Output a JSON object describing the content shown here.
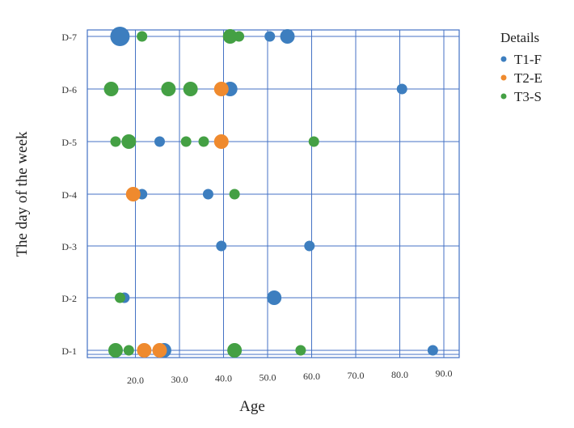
{
  "chart_data": {
    "type": "scatter",
    "title": "",
    "xlabel": "Age",
    "ylabel": "The day of the week",
    "xlim": [
      10,
      90
    ],
    "x_ticks": [
      "20.0",
      "30.0",
      "40.0",
      "50.0",
      "60.0",
      "70.0",
      "80.0",
      "90.0"
    ],
    "categories_y": [
      "D-1",
      "D-2",
      "D-3",
      "D-4",
      "D-5",
      "D-6",
      "D-7"
    ],
    "grid": true,
    "legend": {
      "title": "Details",
      "position": "top-right"
    },
    "series": [
      {
        "name": "T1-F",
        "color": "#3d7ebf",
        "points": [
          {
            "x": 16.5,
            "y": "D-7",
            "size": 3
          },
          {
            "x": 50.5,
            "y": "D-7",
            "size": 1
          },
          {
            "x": 54.5,
            "y": "D-7",
            "size": 2
          },
          {
            "x": 41.5,
            "y": "D-6",
            "size": 2
          },
          {
            "x": 80.5,
            "y": "D-6",
            "size": 1
          },
          {
            "x": 25.5,
            "y": "D-5",
            "size": 1
          },
          {
            "x": 21.5,
            "y": "D-4",
            "size": 1
          },
          {
            "x": 36.5,
            "y": "D-4",
            "size": 1
          },
          {
            "x": 39.5,
            "y": "D-3",
            "size": 1
          },
          {
            "x": 59.5,
            "y": "D-3",
            "size": 1
          },
          {
            "x": 17.5,
            "y": "D-2",
            "size": 1
          },
          {
            "x": 51.5,
            "y": "D-2",
            "size": 2
          },
          {
            "x": 26.5,
            "y": "D-1",
            "size": 2
          },
          {
            "x": 87.5,
            "y": "D-1",
            "size": 1
          }
        ]
      },
      {
        "name": "T2-E",
        "color": "#ef8a2e",
        "points": [
          {
            "x": 39.5,
            "y": "D-6",
            "size": 2
          },
          {
            "x": 39.5,
            "y": "D-5",
            "size": 2
          },
          {
            "x": 19.5,
            "y": "D-4",
            "size": 2
          },
          {
            "x": 22.0,
            "y": "D-1",
            "size": 2
          },
          {
            "x": 25.5,
            "y": "D-1",
            "size": 2
          }
        ]
      },
      {
        "name": "T3-S",
        "color": "#44a044",
        "points": [
          {
            "x": 21.5,
            "y": "D-7",
            "size": 1
          },
          {
            "x": 41.5,
            "y": "D-7",
            "size": 2
          },
          {
            "x": 43.5,
            "y": "D-7",
            "size": 1
          },
          {
            "x": 14.5,
            "y": "D-6",
            "size": 2
          },
          {
            "x": 27.5,
            "y": "D-6",
            "size": 2
          },
          {
            "x": 32.5,
            "y": "D-6",
            "size": 2
          },
          {
            "x": 15.5,
            "y": "D-5",
            "size": 1
          },
          {
            "x": 18.5,
            "y": "D-5",
            "size": 2
          },
          {
            "x": 31.5,
            "y": "D-5",
            "size": 1
          },
          {
            "x": 35.5,
            "y": "D-5",
            "size": 1
          },
          {
            "x": 60.5,
            "y": "D-5",
            "size": 1
          },
          {
            "x": 42.5,
            "y": "D-4",
            "size": 1
          },
          {
            "x": 16.5,
            "y": "D-2",
            "size": 1
          },
          {
            "x": 15.5,
            "y": "D-1",
            "size": 2
          },
          {
            "x": 18.5,
            "y": "D-1",
            "size": 1
          },
          {
            "x": 42.5,
            "y": "D-1",
            "size": 2
          },
          {
            "x": 57.5,
            "y": "D-1",
            "size": 1
          }
        ]
      }
    ]
  }
}
